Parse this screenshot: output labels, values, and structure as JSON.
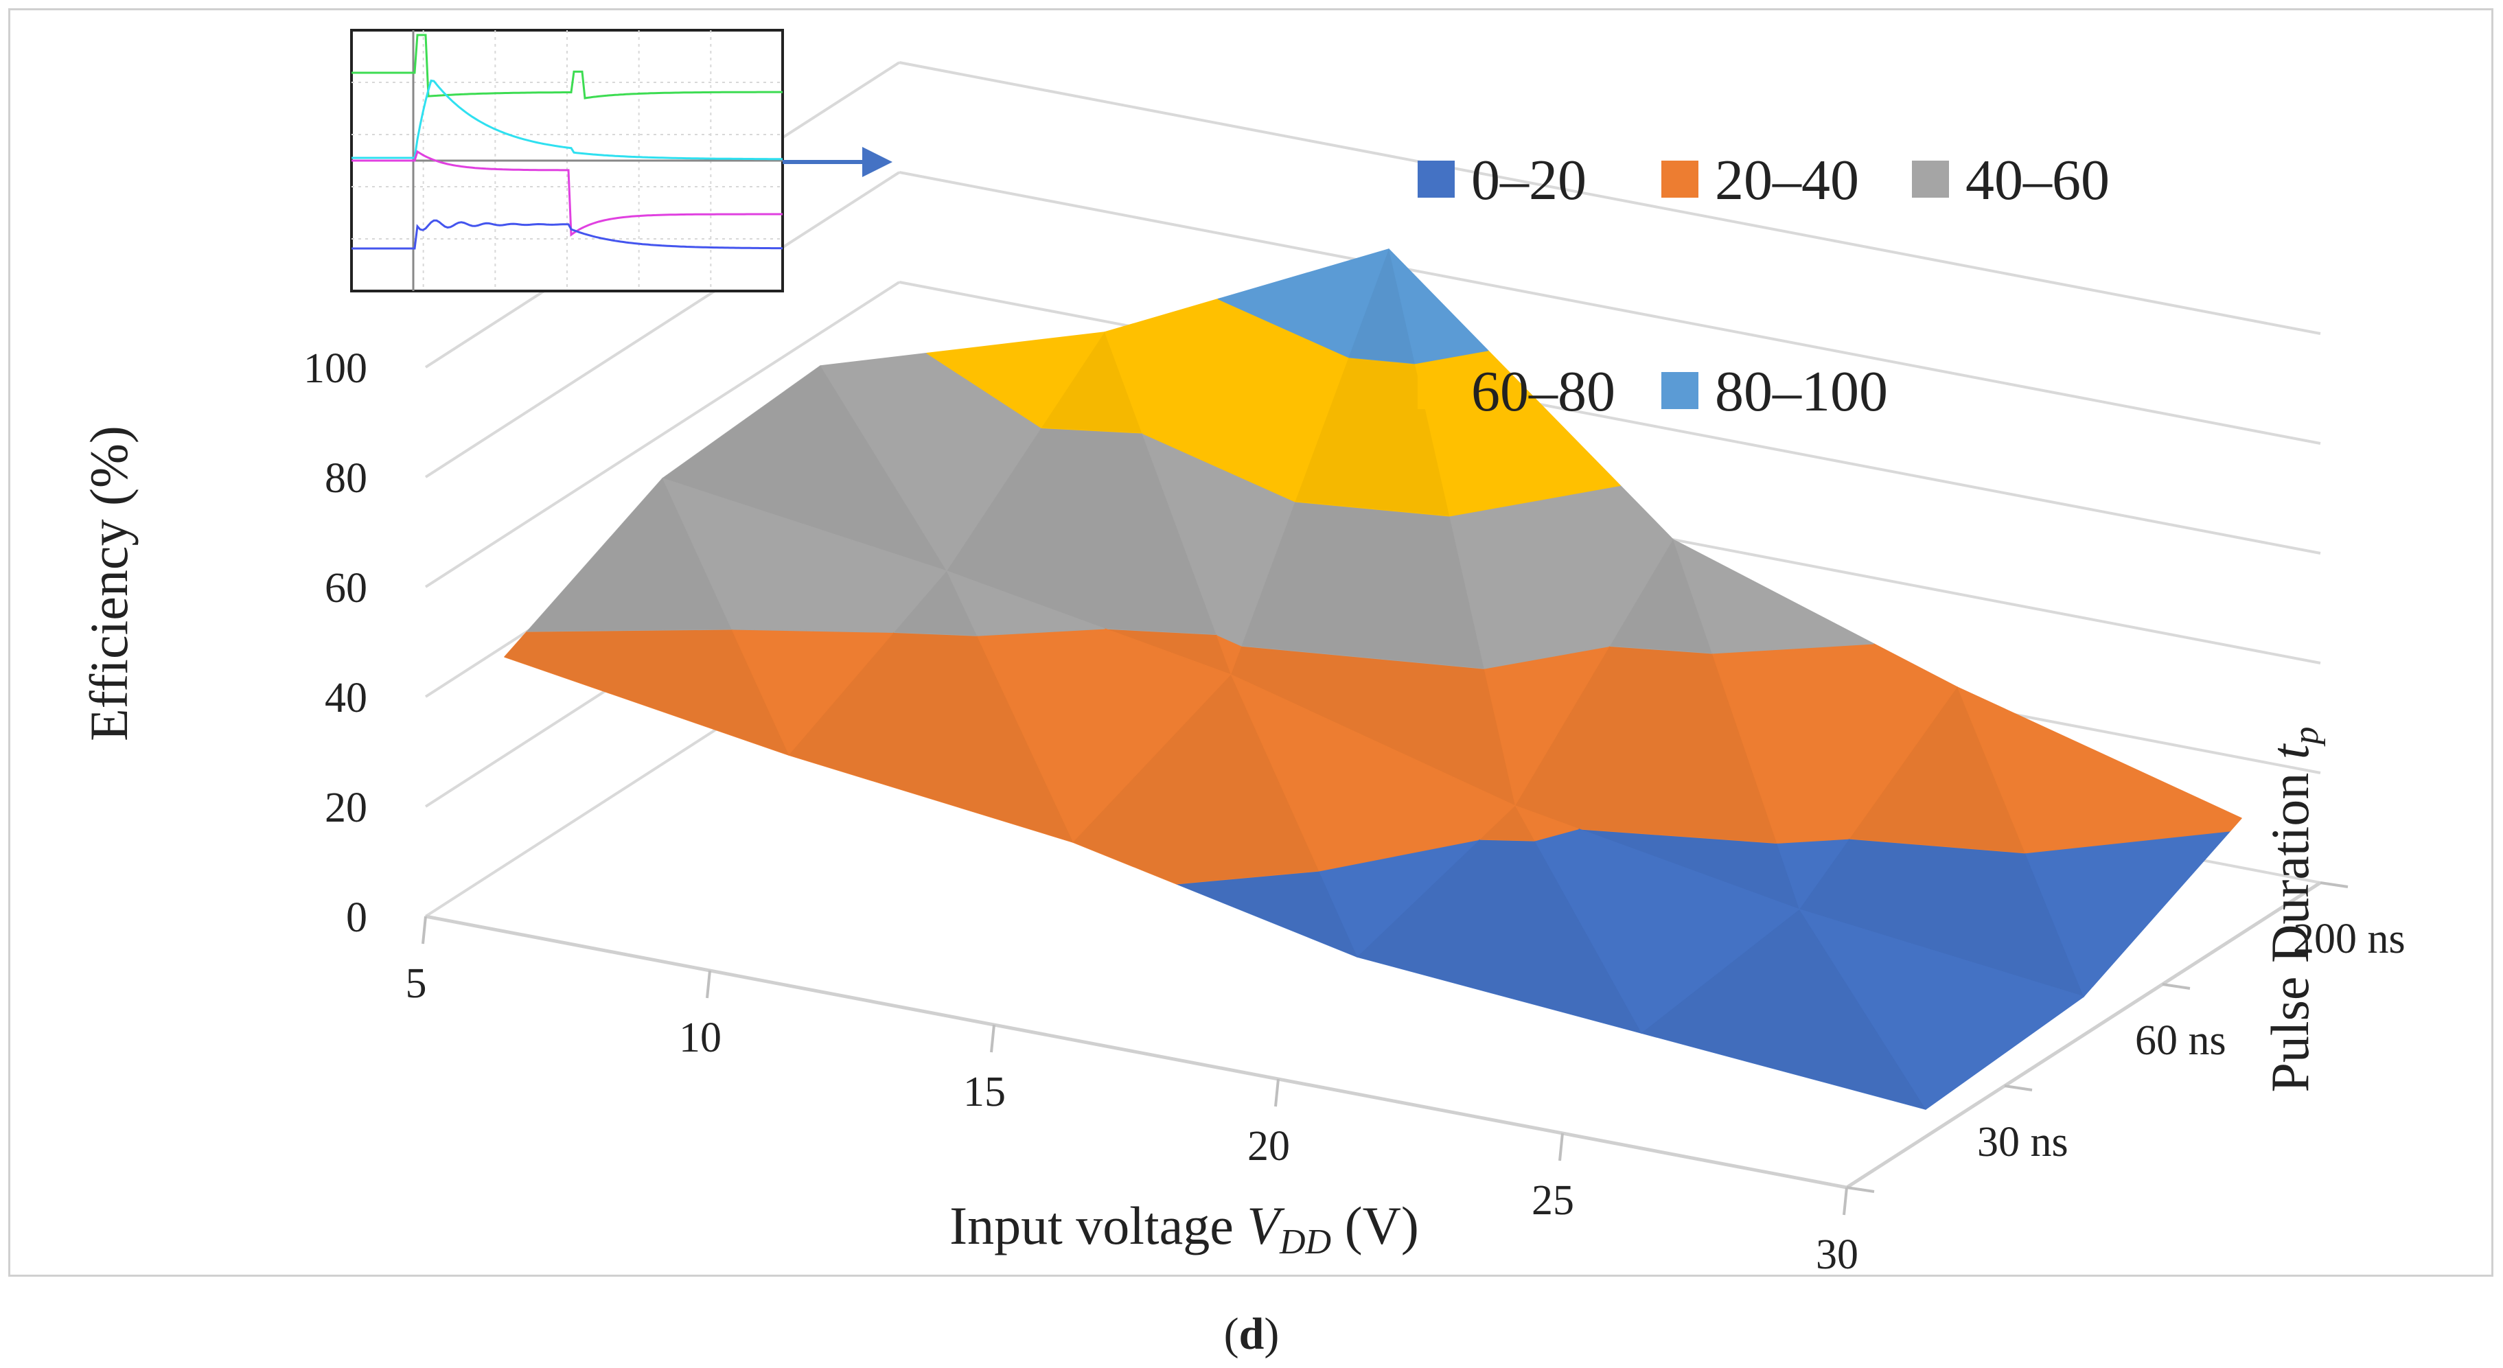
{
  "chart_data": {
    "type": "surface",
    "title": "",
    "xlabel": "Input voltage V_DD (V)",
    "xlabel_parts": {
      "prefix": "Input voltage ",
      "symbol": "V",
      "subscript": "DD",
      "suffix": " (V)"
    },
    "ylabel": "Efficiency (%)",
    "zlabel": "Pulse Duration t_p",
    "zlabel_parts": {
      "prefix": "Pulse Duration ",
      "symbol": "t",
      "subscript": "p"
    },
    "x": [
      5,
      10,
      15,
      20,
      25,
      30
    ],
    "x_tick_labels": [
      "5",
      "10",
      "15",
      "20",
      "25",
      "30"
    ],
    "depth": [
      "30 ns",
      "60 ns",
      "200 ns"
    ],
    "y_ticks": [
      0,
      20,
      40,
      60,
      80,
      100
    ],
    "y_tick_labels": [
      "0",
      "20",
      "40",
      "60",
      "80",
      "100"
    ],
    "ylim": [
      0,
      100
    ],
    "series": [
      {
        "name": "30 ns",
        "values": [
          38,
          30,
          24,
          13,
          9,
          5
        ]
      },
      {
        "name": "60 ns",
        "values": [
          52,
          45,
          36,
          22,
          13,
          7
        ]
      },
      {
        "name": "200 ns",
        "values": [
          54,
          70,
          95,
          52,
          35,
          21
        ]
      }
    ],
    "bands": [
      {
        "label": "0–20",
        "range": [
          0,
          20
        ],
        "color": "#4472c4"
      },
      {
        "label": "20–40",
        "range": [
          20,
          40
        ],
        "color": "#ed7d31"
      },
      {
        "label": "40–60",
        "range": [
          40,
          60
        ],
        "color": "#a5a5a5"
      },
      {
        "label": "60–80",
        "range": [
          60,
          80
        ],
        "color": "#ffc000"
      },
      {
        "label": "80–100",
        "range": [
          80,
          100
        ],
        "color": "#5b9bd5"
      }
    ],
    "inset": {
      "description": "oscilloscope waveform inset pointing to the surface peak",
      "traces": [
        {
          "name": "green",
          "color": "#3ddc52"
        },
        {
          "name": "cyan",
          "color": "#2fe0f0"
        },
        {
          "name": "magenta",
          "color": "#e040e0"
        },
        {
          "name": "blue",
          "color": "#4455ee"
        }
      ]
    },
    "caption": "(d)",
    "caption_parts": {
      "open": "(",
      "letter": "d",
      "close": ")"
    }
  }
}
